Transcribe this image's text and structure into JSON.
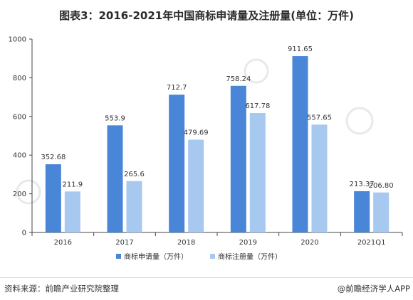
{
  "title": "图表3：2016-2021年中国商标申请量及注册量(单位：万件)",
  "footer": {
    "source": "资料来源：前瞻产业研究院整理",
    "credit": "@前瞻经济学人APP"
  },
  "chart_data": {
    "type": "bar",
    "title": "",
    "xlabel": "",
    "ylabel": "",
    "categories": [
      "2016",
      "2017",
      "2018",
      "2019",
      "2020",
      "2021Q1"
    ],
    "ylim": [
      0,
      1000
    ],
    "yticks": [
      0,
      200,
      400,
      600,
      800,
      1000
    ],
    "grid": false,
    "legend_position": "bottom",
    "series": [
      {
        "name": "商标申请量（万件）",
        "color": "#4a86d8",
        "values": [
          352.68,
          553.9,
          712.7,
          758.24,
          911.65,
          213.37
        ],
        "labels": [
          "352.68",
          "553.9",
          "712.7",
          "758.24",
          "911.65",
          "213.37"
        ]
      },
      {
        "name": "商标注册量（万件）",
        "color": "#a7c8ef",
        "values": [
          211.9,
          265.6,
          479.69,
          617.78,
          557.65,
          206.8
        ],
        "labels": [
          "211.9",
          "265.6",
          "479.69",
          "617.78",
          "557.65",
          "206.80"
        ]
      }
    ]
  }
}
